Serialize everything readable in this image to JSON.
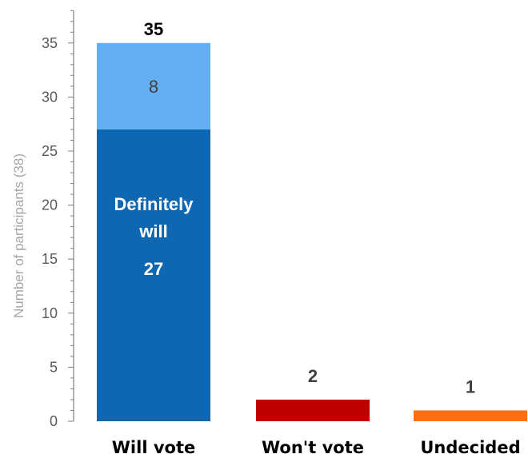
{
  "chart_data": {
    "type": "bar",
    "stacked": true,
    "categories": [
      "Will vote",
      "Won't vote",
      "Undecided"
    ],
    "series": [
      {
        "values": [
          27,
          2,
          1
        ],
        "colors": [
          "#0f67b1",
          "#c00000",
          "#ff6f12"
        ],
        "labels": [
          "Definitely will",
          "",
          ""
        ]
      },
      {
        "values": [
          8,
          0,
          0
        ],
        "colors": [
          "#63aff1"
        ]
      }
    ],
    "totals": [
      35,
      2,
      1
    ],
    "ylabel": "Number of participants (38)",
    "ylim": [
      0,
      38
    ],
    "yticks": [
      0,
      5,
      10,
      15,
      20,
      25,
      30,
      35
    ],
    "grid": false,
    "legend": "none",
    "colors": {
      "axis": "#808080",
      "tick_text": "#595959",
      "ylabel_text": "#a6a6a6",
      "total_text_first": "#000000",
      "total_text_other": "#404040",
      "segment_text_light": "#ffffff",
      "segment_text_dark": "#404040"
    }
  }
}
